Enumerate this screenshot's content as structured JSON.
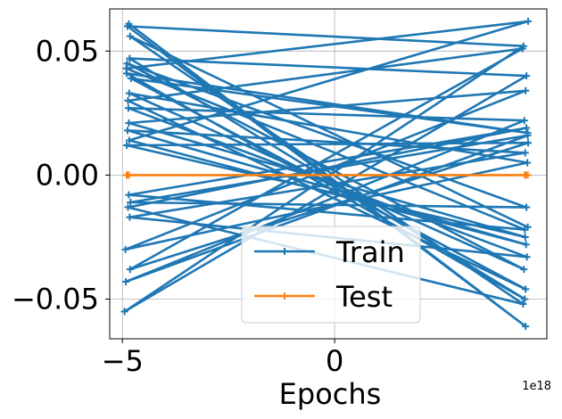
{
  "chart_data": {
    "type": "line",
    "xlabel": "Epochs",
    "ylabel": "",
    "x_offset_label": "1e18",
    "xlim": [
      -5.3,
      5.0
    ],
    "ylim": [
      -0.066,
      0.067
    ],
    "xticks": [
      -5,
      0
    ],
    "xtick_labels": [
      "−5",
      "0"
    ],
    "yticks": [
      -0.05,
      0.0,
      0.05
    ],
    "ytick_labels": [
      "−0.05",
      "0.00",
      "0.05"
    ],
    "grid": true,
    "legend_position": "lower-center",
    "series": [
      {
        "name": "Train",
        "color": "#1f77b4",
        "marker": "plus",
        "x": [
          -4.85,
          4.5,
          -4.88,
          4.45,
          -4.95,
          4.52,
          -4.83,
          4.48,
          -4.9,
          4.55,
          -4.8,
          4.5,
          -4.87,
          4.43,
          -4.82,
          4.56,
          -4.9,
          4.49,
          -4.85,
          4.5,
          -4.93,
          4.54,
          -4.84,
          4.46,
          -4.89,
          4.52,
          -4.81,
          4.55,
          -4.92,
          4.47,
          -4.86,
          4.53,
          -4.83,
          4.49,
          -4.88,
          4.51,
          -4.84,
          4.56,
          -4.91,
          4.48,
          -4.85,
          4.52,
          -4.87,
          4.44,
          -4.82,
          4.55
        ],
        "y": [
          0.061,
          -0.061,
          0.06,
          0.052,
          -0.055,
          0.04,
          0.047,
          -0.05,
          0.041,
          0.017,
          0.039,
          -0.046,
          0.03,
          0.051,
          -0.038,
          0.013,
          0.012,
          -0.025,
          0.021,
          0.034,
          -0.03,
          0.005,
          0.033,
          -0.038,
          0.045,
          -0.013,
          -0.011,
          0.016,
          -0.043,
          0.022,
          0.027,
          -0.033,
          -0.017,
          0.009,
          0.018,
          -0.028,
          0.014,
          0.062,
          0.043,
          -0.022,
          -0.008,
          0.019,
          -0.013,
          -0.052,
          0.056,
          -0.021
        ]
      },
      {
        "name": "Test",
        "color": "#ff7f0e",
        "marker": "plus",
        "x": [
          -4.9,
          4.5,
          -4.85,
          4.55,
          -4.88,
          4.48
        ],
        "y": [
          0.0,
          0.0,
          0.0,
          0.0,
          0.0,
          0.0
        ]
      }
    ]
  }
}
